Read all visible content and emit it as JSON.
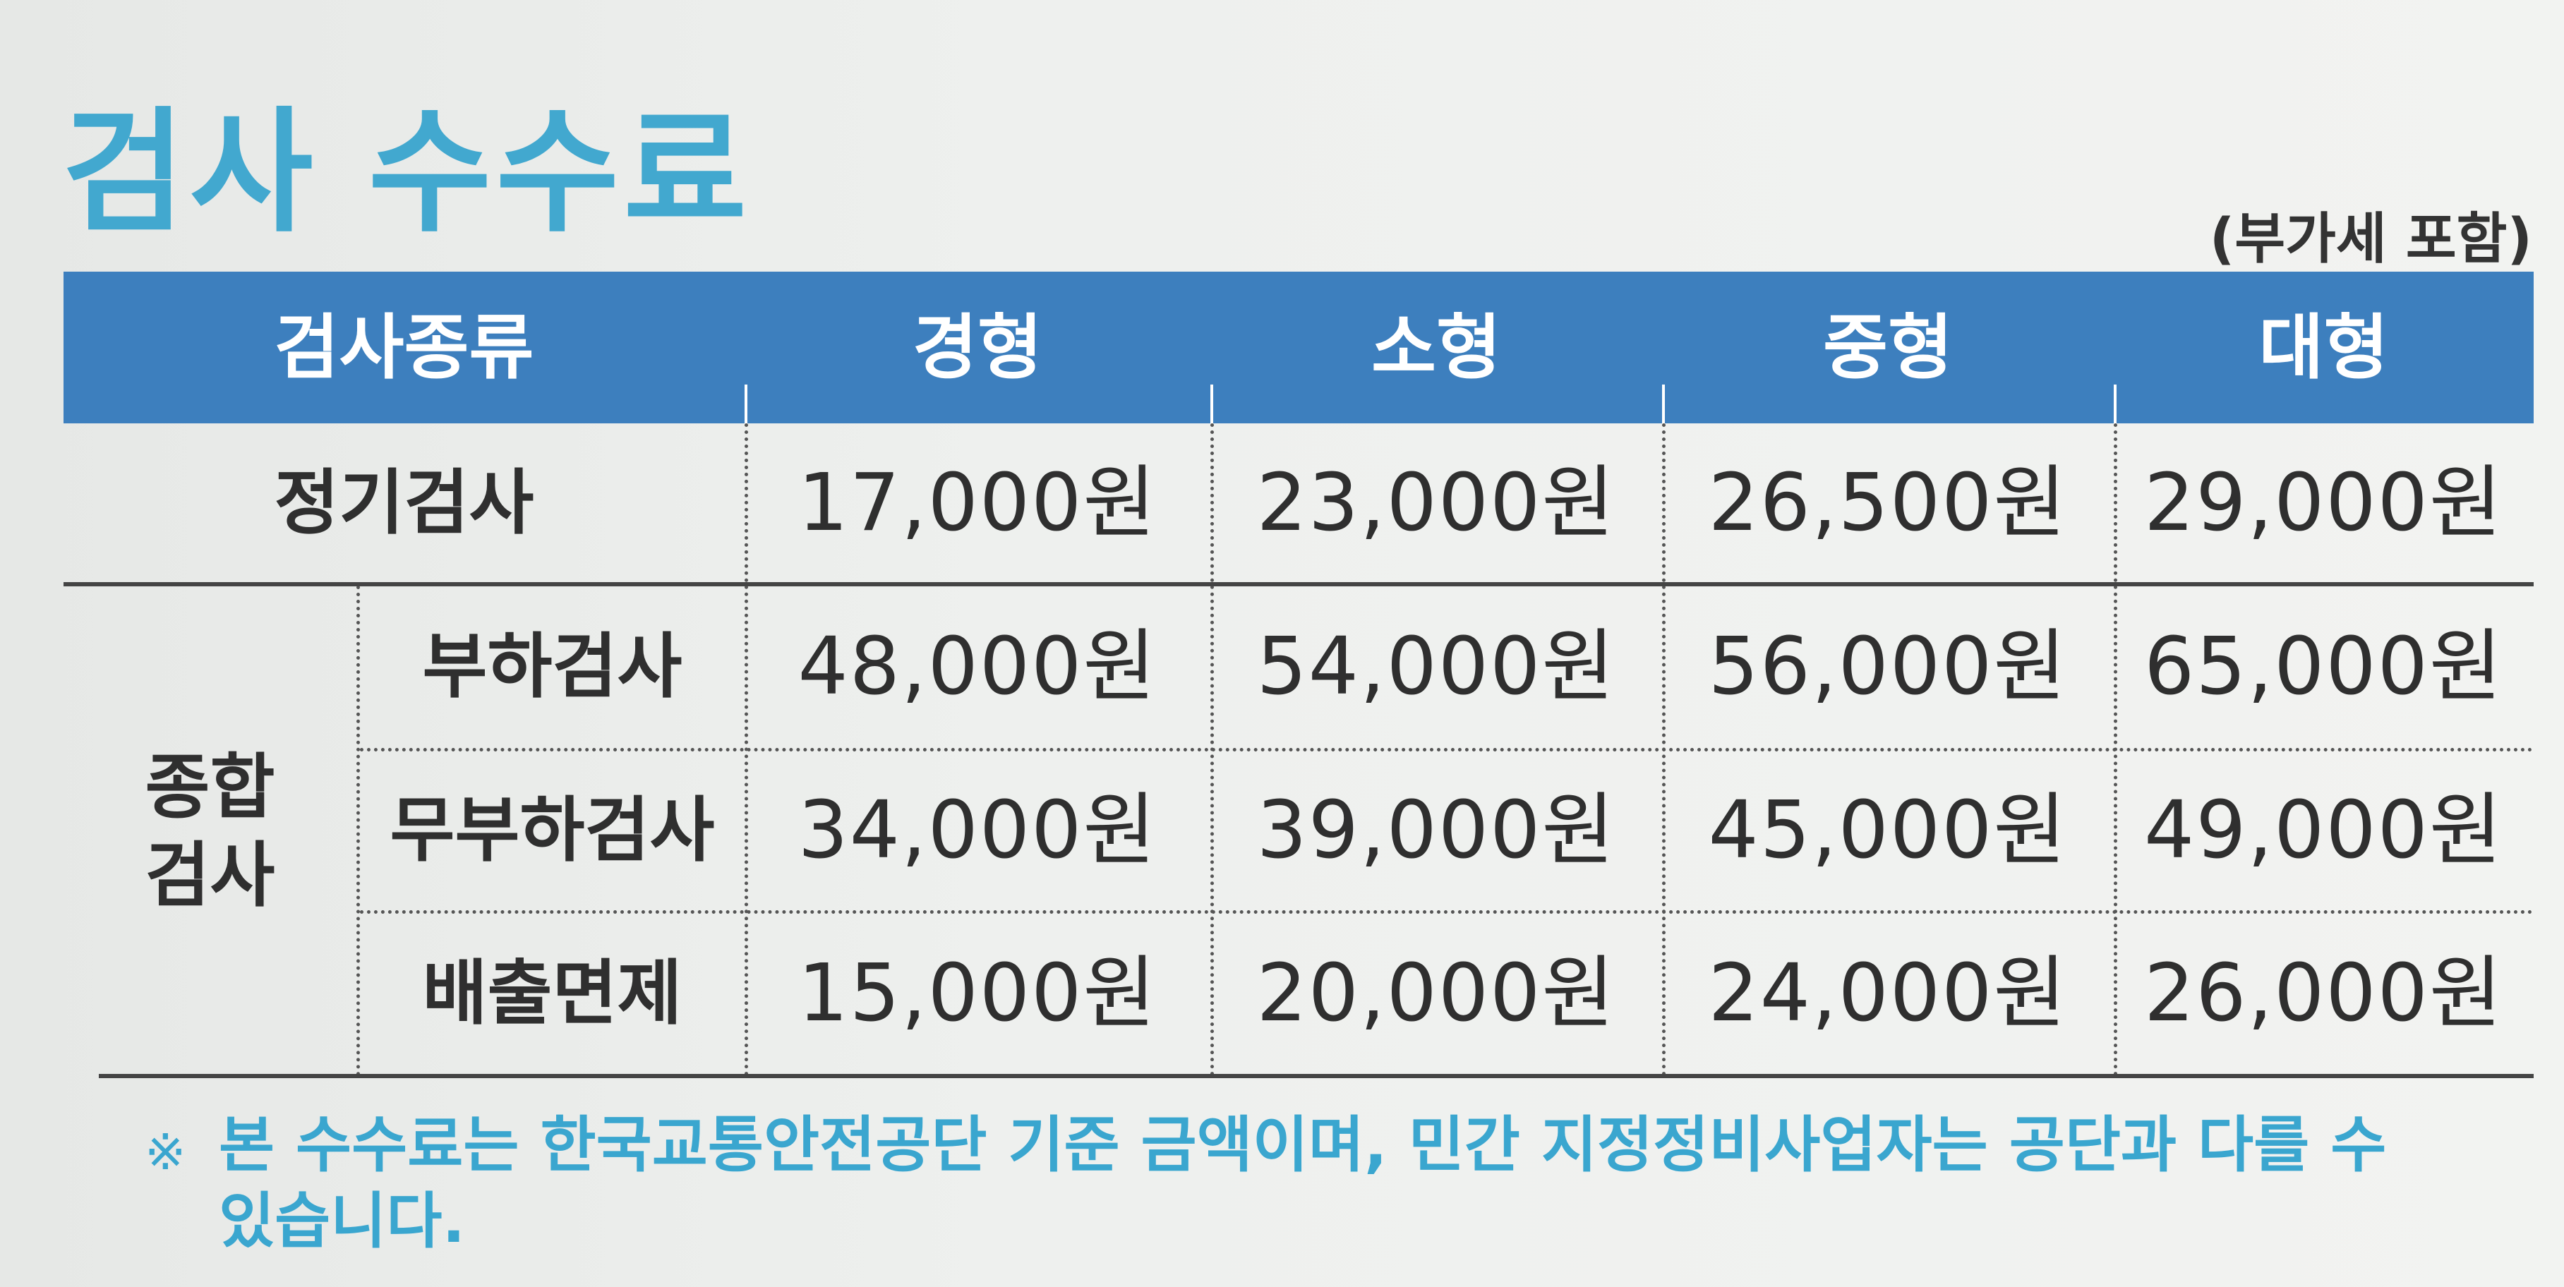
{
  "title": "검사 수수료",
  "vat_note": "(부가세 포함)",
  "table": {
    "headers": {
      "type": "검사종류",
      "light": "경형",
      "small": "소형",
      "medium": "중형",
      "large": "대형"
    },
    "regular": {
      "label": "정기검사",
      "values": [
        "17,000원",
        "23,000원",
        "26,500원",
        "29,000원"
      ]
    },
    "comprehensive": {
      "label_line1": "종합",
      "label_line2": "검사",
      "rows": [
        {
          "label": "부하검사",
          "values": [
            "48,000원",
            "54,000원",
            "56,000원",
            "65,000원"
          ]
        },
        {
          "label": "무부하검사",
          "values": [
            "34,000원",
            "39,000원",
            "45,000원",
            "49,000원"
          ]
        },
        {
          "label": "배출면제",
          "values": [
            "15,000원",
            "20,000원",
            "24,000원",
            "26,000원"
          ]
        }
      ]
    }
  },
  "footnote": {
    "mark": "※",
    "text": "본 수수료는 한국교통안전공단 기준 금액이며, 민간 지정정비사업자는 공단과 다를 수 있습니다."
  },
  "colors": {
    "title": "#42a8cf",
    "header_bg": "#3d7fbe",
    "footnote": "#3aa6cf"
  }
}
